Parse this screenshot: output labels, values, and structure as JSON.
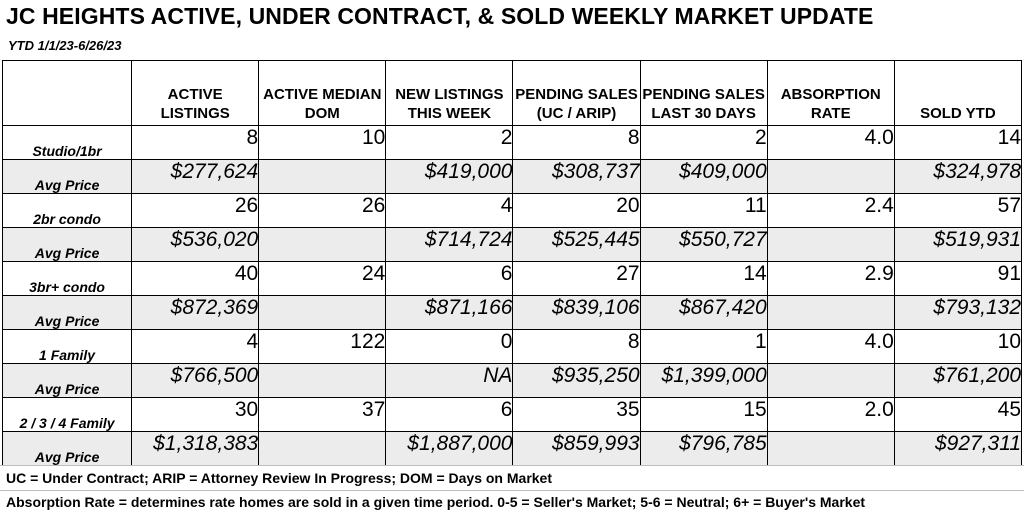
{
  "title": "JC HEIGHTS ACTIVE, UNDER CONTRACT, & SOLD WEEKLY MARKET UPDATE",
  "ytd": "YTD 1/1/23-6/26/23",
  "headers": [
    "ACTIVE LISTINGS",
    "ACTIVE MEDIAN DOM",
    "NEW LISTINGS THIS WEEK",
    "PENDING SALES (UC / ARIP)",
    "PENDING SALES LAST 30 DAYS",
    "ABSORPTION RATE",
    "SOLD YTD"
  ],
  "rows": [
    {
      "label": "Studio/1br",
      "cells": [
        "8",
        "10",
        "2",
        "8",
        "2",
        "4.0",
        "14"
      ]
    },
    {
      "label": "Avg Price",
      "cells": [
        "$277,624",
        "",
        "$419,000",
        "$308,737",
        "$409,000",
        "",
        "$324,978"
      ]
    },
    {
      "label": "2br condo",
      "cells": [
        "26",
        "26",
        "4",
        "20",
        "11",
        "2.4",
        "57"
      ]
    },
    {
      "label": "Avg Price",
      "cells": [
        "$536,020",
        "",
        "$714,724",
        "$525,445",
        "$550,727",
        "",
        "$519,931"
      ]
    },
    {
      "label": "3br+ condo",
      "cells": [
        "40",
        "24",
        "6",
        "27",
        "14",
        "2.9",
        "91"
      ]
    },
    {
      "label": "Avg Price",
      "cells": [
        "$872,369",
        "",
        "$871,166",
        "$839,106",
        "$867,420",
        "",
        "$793,132"
      ]
    },
    {
      "label": "1 Family",
      "cells": [
        "4",
        "122",
        "0",
        "8",
        "1",
        "4.0",
        "10"
      ]
    },
    {
      "label": "Avg Price",
      "cells": [
        "$766,500",
        "",
        "NA",
        "$935,250",
        "$1,399,000",
        "",
        "$761,200"
      ]
    },
    {
      "label": "2 / 3 / 4 Family",
      "cells": [
        "30",
        "37",
        "6",
        "35",
        "15",
        "2.0",
        "45"
      ]
    },
    {
      "label": "Avg Price",
      "cells": [
        "$1,318,383",
        "",
        "$1,887,000",
        "$859,993",
        "$796,785",
        "",
        "$927,311"
      ]
    }
  ],
  "note1": "UC = Under Contract; ARIP = Attorney Review In Progress; DOM = Days on Market",
  "note2": "Absorption Rate = determines rate homes are sold in a given time period.  0-5 = Seller's Market; 5-6 = Neutral; 6+ = Buyer's Market"
}
